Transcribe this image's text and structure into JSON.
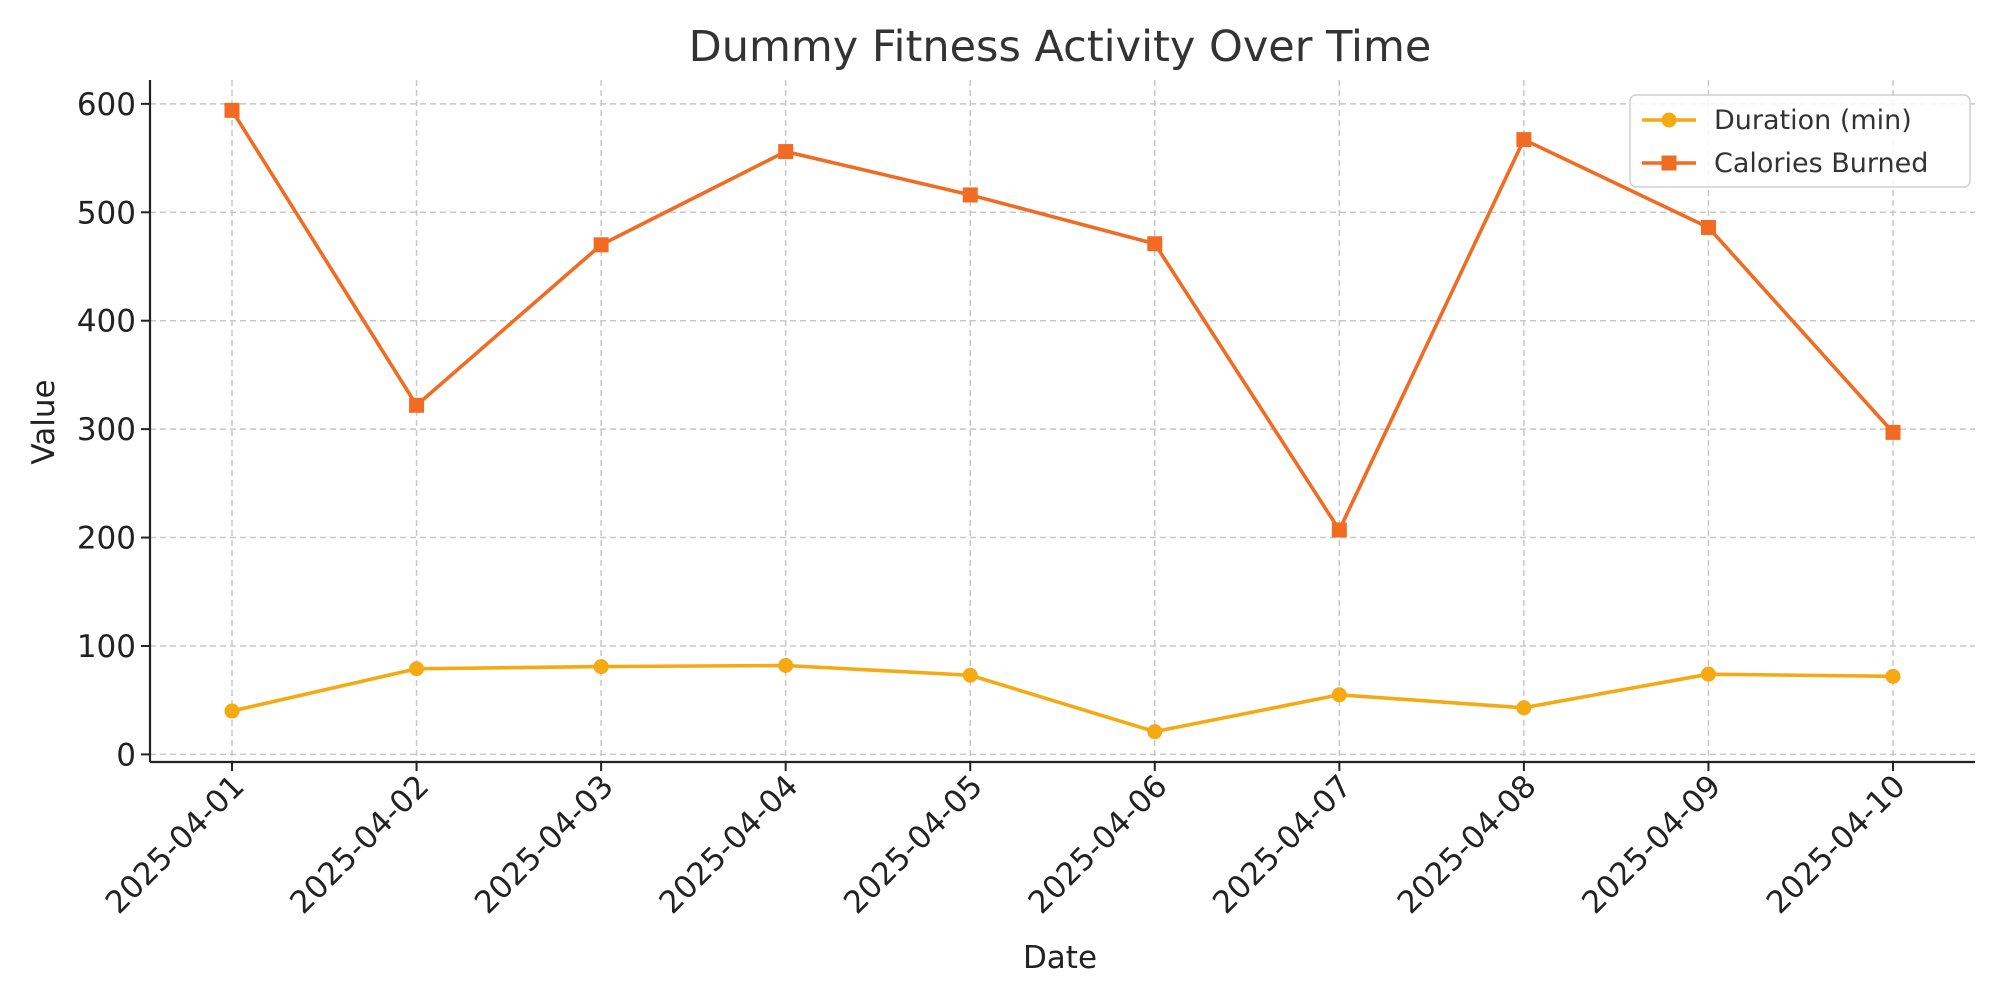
{
  "chart_data": {
    "type": "line",
    "title": "Dummy Fitness Activity Over Time",
    "xlabel": "Date",
    "ylabel": "Value",
    "categories": [
      "2025-04-01",
      "2025-04-02",
      "2025-04-03",
      "2025-04-04",
      "2025-04-05",
      "2025-04-06",
      "2025-04-07",
      "2025-04-08",
      "2025-04-09",
      "2025-04-10"
    ],
    "ylim": [
      -7,
      622
    ],
    "yticks": [
      0,
      100,
      200,
      300,
      400,
      500,
      600
    ],
    "grid": true,
    "legend_position": "top-right",
    "series": [
      {
        "name": "Duration (min)",
        "color": "#F5A912",
        "marker": "circle",
        "values": [
          40,
          79,
          81,
          82,
          73,
          21,
          55,
          43,
          74,
          72
        ]
      },
      {
        "name": "Calories Burned",
        "color": "#F26B23",
        "marker": "square",
        "values": [
          594,
          322,
          470,
          556,
          516,
          471,
          207,
          567,
          486,
          297
        ]
      }
    ]
  }
}
